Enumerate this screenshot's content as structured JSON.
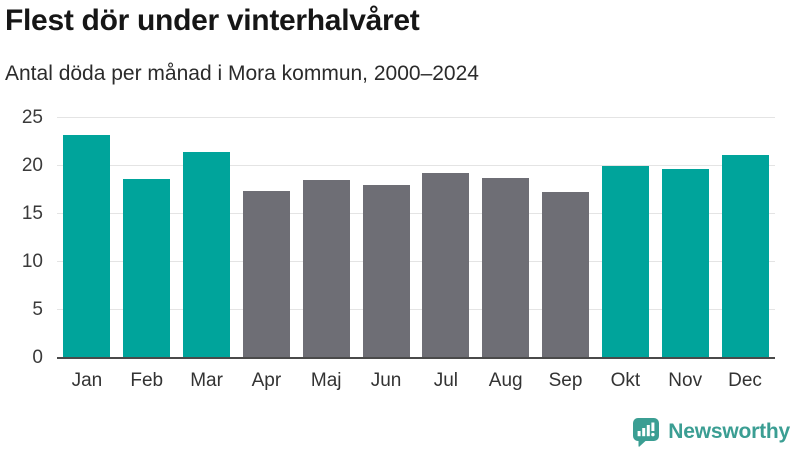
{
  "header": {
    "title": "Flest dör under vinterhalvåret",
    "subtitle": "Antal döda per månad i Mora kommun, 2000–2024"
  },
  "chart_data": {
    "type": "bar",
    "title": "Flest dör under vinterhalvåret",
    "subtitle": "Antal döda per månad i Mora kommun, 2000–2024",
    "categories": [
      "Jan",
      "Feb",
      "Mar",
      "Apr",
      "Maj",
      "Jun",
      "Jul",
      "Aug",
      "Sep",
      "Okt",
      "Nov",
      "Dec"
    ],
    "values": [
      23.2,
      18.7,
      21.5,
      17.4,
      18.5,
      18.0,
      19.3,
      18.8,
      17.3,
      20.0,
      19.7,
      21.1
    ],
    "bar_roles": [
      "highlight",
      "highlight",
      "highlight",
      "base",
      "base",
      "base",
      "base",
      "base",
      "base",
      "highlight",
      "highlight",
      "highlight"
    ],
    "xlabel": "",
    "ylabel": "",
    "ylim": [
      0,
      25
    ],
    "yticks": [
      0,
      5,
      10,
      15,
      20,
      25
    ],
    "grid": "horizontal",
    "legend": "none",
    "colors": {
      "highlight": "#00a49b",
      "base": "#6e6e75",
      "gridline": "#e4e4e4",
      "axis_line": "#4a4a4a"
    }
  },
  "footer": {
    "brand": "Newsworthy",
    "brand_color": "#3b9e93"
  }
}
